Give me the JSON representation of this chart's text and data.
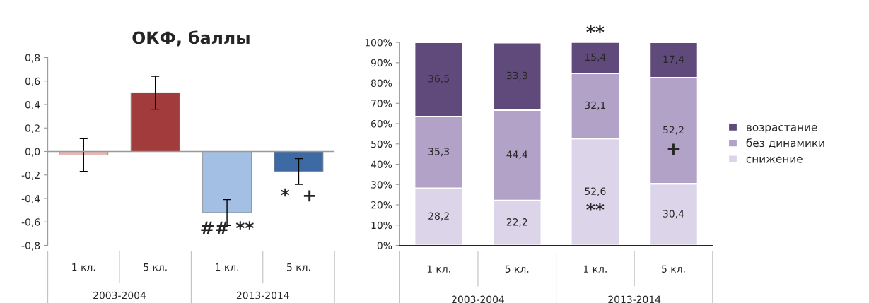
{
  "chart_data": [
    {
      "type": "bar",
      "title": "ОКФ, баллы",
      "categories": [
        "1 кл.",
        "5 кл.",
        "1 кл.",
        "5 кл."
      ],
      "values": [
        -0.03,
        0.5,
        -0.52,
        -0.17
      ],
      "colors": [
        "#e6b9b8",
        "#a23b3b",
        "#a3c0e4",
        "#3d6aa3"
      ],
      "errors": [
        0.14,
        0.14,
        0.11,
        0.11
      ],
      "ylim": [
        -0.8,
        0.8
      ],
      "yticks": [
        {
          "value": -0.8,
          "label": "-0,8"
        },
        {
          "value": -0.6,
          "label": "-0,6"
        },
        {
          "value": -0.4,
          "label": "-0,4"
        },
        {
          "value": -0.2,
          "label": "-0,2"
        },
        {
          "value": 0,
          "label": "0,0"
        },
        {
          "value": 0.2,
          "label": "0,2"
        },
        {
          "value": 0.4,
          "label": "0,4"
        },
        {
          "value": 0.6,
          "label": "0,6"
        },
        {
          "value": 0.8,
          "label": "0,8"
        }
      ],
      "annotations": [
        "2003-2004",
        "2013-2014",
        "## **",
        "*  +"
      ]
    },
    {
      "type": "bar",
      "stacked": true,
      "categories": [
        "1 кл.",
        "5 кл.",
        "1 кл.",
        "5 кл."
      ],
      "series": [
        {
          "name": "снижение",
          "color": "#dcd4e8",
          "values": [
            28.2,
            22.2,
            52.6,
            30.4
          ],
          "value_labels": [
            "28,2",
            "22,2",
            "52,6",
            "30,4"
          ]
        },
        {
          "name": "без динамики",
          "color": "#b3a2c7",
          "values": [
            35.3,
            44.4,
            32.1,
            52.2
          ],
          "value_labels": [
            "35,3",
            "44,4",
            "32,1",
            "52,2"
          ]
        },
        {
          "name": "возрастание",
          "color": "#604a7b",
          "values": [
            36.5,
            33.3,
            15.4,
            17.4
          ],
          "value_labels": [
            "36,5",
            "33,3",
            "15,4",
            "17,4"
          ]
        }
      ],
      "ylim": [
        0,
        100
      ],
      "yticks": [
        {
          "value": 0,
          "label": "0%"
        },
        {
          "value": 10,
          "label": "10%"
        },
        {
          "value": 20,
          "label": "20%"
        },
        {
          "value": 30,
          "label": "30%"
        },
        {
          "value": 40,
          "label": "40%"
        },
        {
          "value": 50,
          "label": "50%"
        },
        {
          "value": 60,
          "label": "60%"
        },
        {
          "value": 70,
          "label": "70%"
        },
        {
          "value": 80,
          "label": "80%"
        },
        {
          "value": 90,
          "label": "90%"
        },
        {
          "value": 100,
          "label": "100%"
        }
      ],
      "legend": "right",
      "annotations": [
        "2003-2004",
        "2013-2014",
        "**",
        "**",
        "+"
      ]
    }
  ]
}
